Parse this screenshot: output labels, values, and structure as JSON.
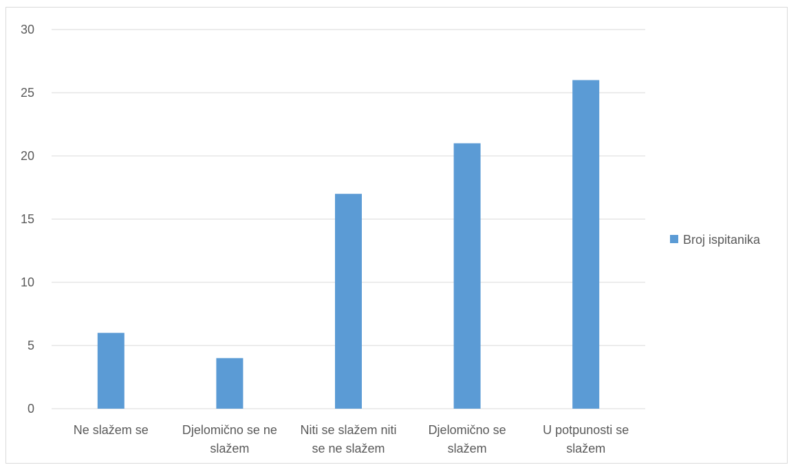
{
  "chart_data": {
    "type": "bar",
    "categories": [
      [
        "Ne slažem se"
      ],
      [
        "Djelomično se ne",
        "slažem"
      ],
      [
        "Niti se slažem niti",
        "se ne slažem"
      ],
      [
        "Djelomično se",
        "slažem"
      ],
      [
        "U potpunosti se",
        "slažem"
      ]
    ],
    "series": [
      {
        "name": "Broj ispitanika",
        "values": [
          6,
          4,
          17,
          21,
          26
        ],
        "color": "#5b9bd5"
      }
    ],
    "ylim": [
      0,
      30
    ],
    "yticks": [
      0,
      5,
      10,
      15,
      20,
      25,
      30
    ],
    "grid": true,
    "legend_position": "right",
    "title": "",
    "xlabel": "",
    "ylabel": ""
  }
}
